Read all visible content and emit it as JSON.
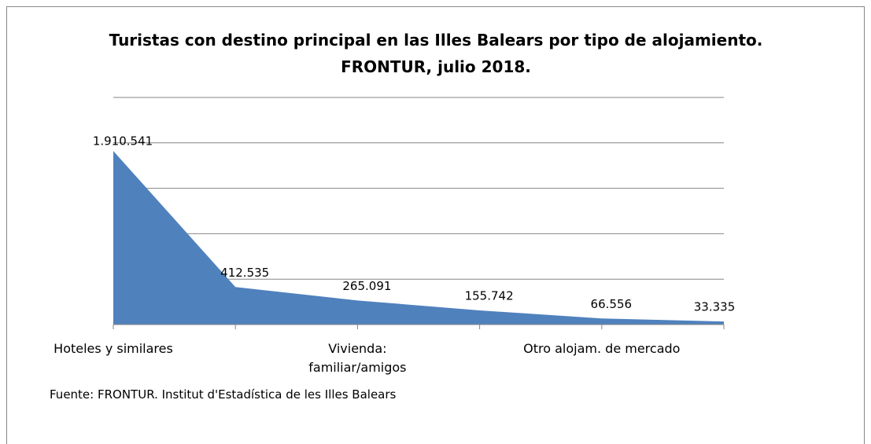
{
  "chart_data": {
    "type": "area",
    "title": "Turistas con destino principal en las Illes Balears por tipo de alojamiento. FRONTUR, julio 2018.",
    "categories": [
      "Hoteles y similares",
      null,
      "Vivienda: familiar/amigos",
      null,
      "Otro alojam. de mercado",
      null
    ],
    "values": [
      1910541,
      412535,
      265091,
      155742,
      66556,
      33335
    ],
    "value_labels": [
      "1.910.541",
      "412.535",
      "265.091",
      "155.742",
      "66.556",
      "33.335"
    ],
    "color": "#4f81bd",
    "ylim": [
      0,
      2500000
    ],
    "yticks": [
      0,
      500000,
      1000000,
      1500000,
      2000000,
      2500000
    ],
    "grid": true,
    "source": "Fuente: FRONTUR. Institut d'Estadística de les Illes Balears"
  }
}
